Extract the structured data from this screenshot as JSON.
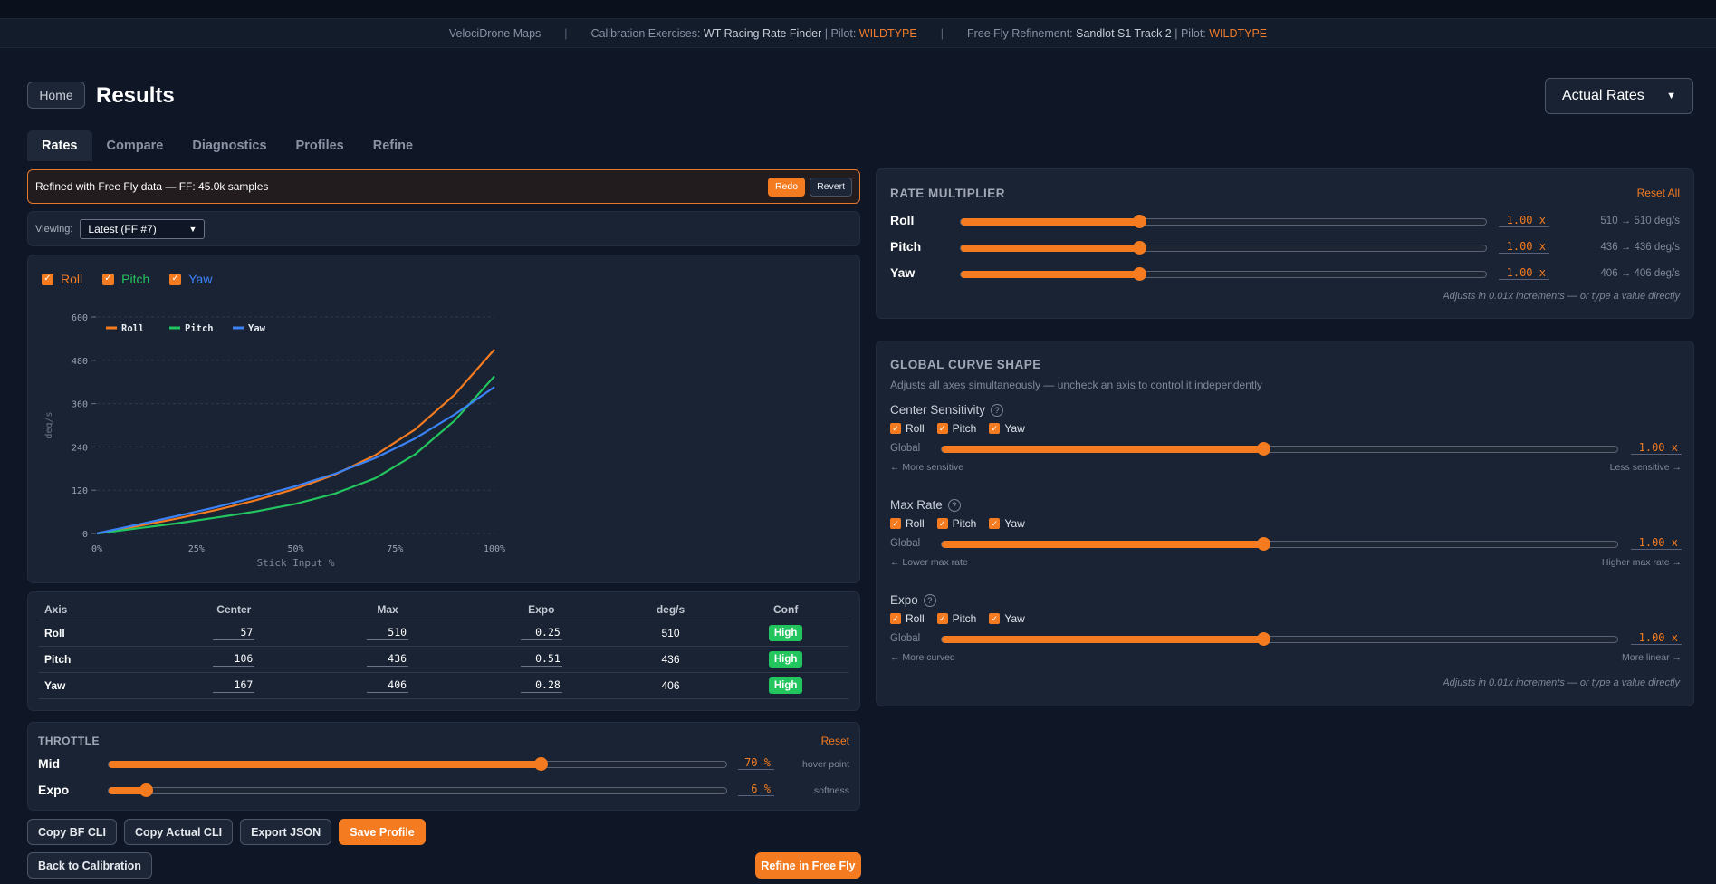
{
  "infobar": {
    "maps": "VelociDrone Maps",
    "calib_label": "Calibration Exercises:",
    "calib_track": "WT Racing Rate Finder",
    "pilot_label": "| Pilot:",
    "pilot_name": "WILDTYPE",
    "ff_label": "Free Fly Refinement:",
    "ff_track": "Sandlot S1 Track 2",
    "pilot_label2": "| Pilot:",
    "pilot_name2": "WILDTYPE"
  },
  "header": {
    "home": "Home",
    "title": "Results",
    "mode": "Actual Rates"
  },
  "tabs": [
    "Rates",
    "Compare",
    "Diagnostics",
    "Profiles",
    "Refine"
  ],
  "refined": {
    "text": "Refined with Free Fly data — FF: 45.0k samples",
    "redo": "Redo",
    "revert": "Revert"
  },
  "viewing": {
    "label": "Viewing:",
    "value": "Latest (FF #7)"
  },
  "chart_toggles": [
    "Roll",
    "Pitch",
    "Yaw"
  ],
  "colors": {
    "roll": "#f47b20",
    "pitch": "#22c55e",
    "yaw": "#3b82f6",
    "accent": "#f47b20"
  },
  "chart_data": {
    "type": "line",
    "xlabel": "Stick Input %",
    "ylabel": "deg/s",
    "xlim": [
      0,
      100
    ],
    "ylim": [
      0,
      600
    ],
    "xticks": [
      "0%",
      "25%",
      "50%",
      "75%",
      "100%"
    ],
    "yticks": [
      "0",
      "120",
      "240",
      "360",
      "480",
      "600"
    ],
    "x": [
      0,
      10,
      20,
      30,
      40,
      50,
      60,
      70,
      80,
      90,
      100
    ],
    "series": [
      {
        "name": "Roll",
        "values": [
          0,
          20,
          41,
          65,
          92,
          124,
          164,
          217,
          288,
          385,
          510
        ]
      },
      {
        "name": "Pitch",
        "values": [
          0,
          14,
          28,
          44,
          61,
          82,
          111,
          153,
          219,
          313,
          436
        ]
      },
      {
        "name": "Yaw",
        "values": [
          0,
          24,
          48,
          73,
          101,
          131,
          166,
          209,
          263,
          330,
          406
        ]
      }
    ],
    "legend": "top-left",
    "grid": true
  },
  "table": {
    "headers": [
      "Axis",
      "Center",
      "Max",
      "Expo",
      "deg/s",
      "Conf"
    ],
    "rows": [
      {
        "axis": "Roll",
        "center": "57",
        "max": "510",
        "expo": "0.25",
        "degs": "510",
        "conf": "High"
      },
      {
        "axis": "Pitch",
        "center": "106",
        "max": "436",
        "expo": "0.51",
        "degs": "436",
        "conf": "High"
      },
      {
        "axis": "Yaw",
        "center": "167",
        "max": "406",
        "expo": "0.28",
        "degs": "406",
        "conf": "High"
      }
    ]
  },
  "throttle": {
    "title": "THROTTLE",
    "reset": "Reset",
    "mid": {
      "label": "Mid",
      "value": "70",
      "unit": "%",
      "hint": "hover point",
      "fraction": 0.7
    },
    "expo": {
      "label": "Expo",
      "value": "6",
      "unit": "%",
      "hint": "softness",
      "fraction": 0.06
    }
  },
  "actions": {
    "copy_bf": "Copy BF CLI",
    "copy_actual": "Copy Actual CLI",
    "export": "Export JSON",
    "save": "Save Profile",
    "back": "Back to Calibration",
    "refine": "Refine in Free Fly"
  },
  "rate_multiplier": {
    "title": "RATE MULTIPLIER",
    "reset": "Reset All",
    "rows": [
      {
        "label": "Roll",
        "value": "1.00",
        "unit": "x",
        "range": "510 → 510 deg/s",
        "fraction": 0.34
      },
      {
        "label": "Pitch",
        "value": "1.00",
        "unit": "x",
        "range": "436 → 436 deg/s",
        "fraction": 0.34
      },
      {
        "label": "Yaw",
        "value": "1.00",
        "unit": "x",
        "range": "406 → 406 deg/s",
        "fraction": 0.34
      }
    ],
    "note": "Adjusts in 0.01x increments — or type a value directly"
  },
  "curve": {
    "title": "GLOBAL CURVE SHAPE",
    "subtitle": "Adjusts all axes simultaneously — uncheck an axis to control it independently",
    "groups": [
      {
        "label": "Center Sensitivity",
        "axes": [
          "Roll",
          "Pitch",
          "Yaw"
        ],
        "global": "Global",
        "value": "1.00",
        "unit": "x",
        "left": "← More sensitive",
        "right": "Less sensitive →",
        "fraction": 0.476
      },
      {
        "label": "Max Rate",
        "axes": [
          "Roll",
          "Pitch",
          "Yaw"
        ],
        "global": "Global",
        "value": "1.00",
        "unit": "x",
        "left": "← Lower max rate",
        "right": "Higher max rate →",
        "fraction": 0.476
      },
      {
        "label": "Expo",
        "axes": [
          "Roll",
          "Pitch",
          "Yaw"
        ],
        "global": "Global",
        "value": "1.00",
        "unit": "x",
        "left": "← More curved",
        "right": "More linear →",
        "fraction": 0.476
      }
    ],
    "note": "Adjusts in 0.01x increments — or type a value directly"
  }
}
